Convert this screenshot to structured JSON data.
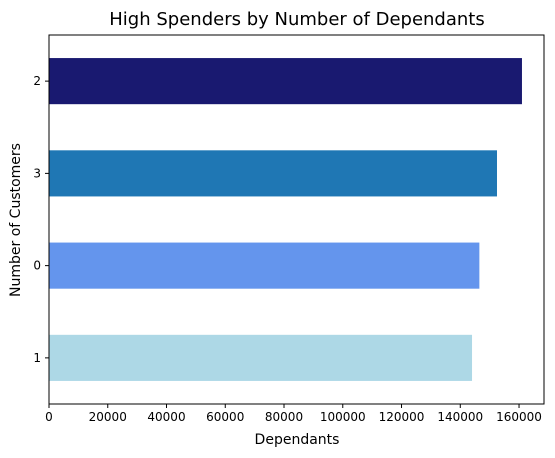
{
  "chart_data": {
    "type": "bar",
    "orientation": "horizontal",
    "title": "High Spenders by Number of Dependants",
    "xlabel": "Dependants",
    "ylabel": "Number of Customers",
    "categories": [
      "2",
      "3",
      "0",
      "1"
    ],
    "values": [
      161000,
      152500,
      146500,
      144000
    ],
    "colors": [
      "#191970",
      "#1f77b4",
      "#6495ed",
      "#add8e6"
    ],
    "xlim": [
      0,
      168500
    ],
    "xticks": [
      0,
      20000,
      40000,
      60000,
      80000,
      100000,
      120000,
      140000,
      160000
    ],
    "grid": false
  }
}
